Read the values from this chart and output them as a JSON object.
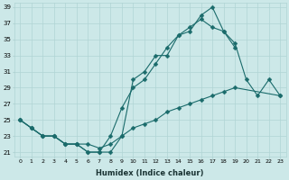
{
  "xlabel": "Humidex (Indice chaleur)",
  "xlim": [
    -0.5,
    23.5
  ],
  "ylim": [
    20.5,
    39.5
  ],
  "xticks": [
    0,
    1,
    2,
    3,
    4,
    5,
    6,
    7,
    8,
    9,
    10,
    11,
    12,
    13,
    14,
    15,
    16,
    17,
    18,
    19,
    20,
    21,
    22,
    23
  ],
  "yticks": [
    21,
    23,
    25,
    27,
    29,
    31,
    33,
    35,
    37,
    39
  ],
  "bg_color": "#cce8e8",
  "grid_color": "#b0d4d4",
  "line_color": "#1a6b6b",
  "line1_x": [
    0,
    1,
    2,
    3,
    4,
    5,
    6,
    7,
    8,
    9,
    10,
    11,
    12,
    13,
    14,
    15,
    16,
    17,
    18,
    19,
    20,
    21,
    22,
    23
  ],
  "line1_y": [
    25,
    24,
    23,
    23,
    22,
    22,
    21,
    21,
    21,
    23,
    30,
    31,
    33,
    33,
    35.5,
    36,
    38,
    39,
    36,
    34.5,
    30,
    28,
    30,
    28
  ],
  "line2_x": [
    0,
    1,
    2,
    3,
    4,
    5,
    6,
    7,
    8,
    9,
    10,
    11,
    12,
    13,
    14,
    15,
    16,
    17,
    18,
    19,
    20,
    21,
    22,
    23
  ],
  "line2_y": [
    25,
    24,
    23,
    23,
    22,
    22,
    21,
    21,
    23,
    26.5,
    29,
    30,
    32,
    34,
    35.5,
    36.5,
    37.5,
    36.5,
    36,
    34,
    null,
    null,
    null,
    null
  ],
  "line3_x": [
    0,
    1,
    2,
    3,
    4,
    5,
    6,
    7,
    8,
    9,
    10,
    11,
    12,
    13,
    14,
    15,
    16,
    17,
    18,
    19,
    22,
    23
  ],
  "line3_y": [
    25,
    24,
    23,
    23,
    22,
    22,
    22,
    21.5,
    22,
    23,
    24,
    24.5,
    25,
    26,
    26.5,
    27,
    27.5,
    28,
    28.5,
    29,
    null,
    28
  ],
  "marker": "D",
  "markersize": 2.5
}
